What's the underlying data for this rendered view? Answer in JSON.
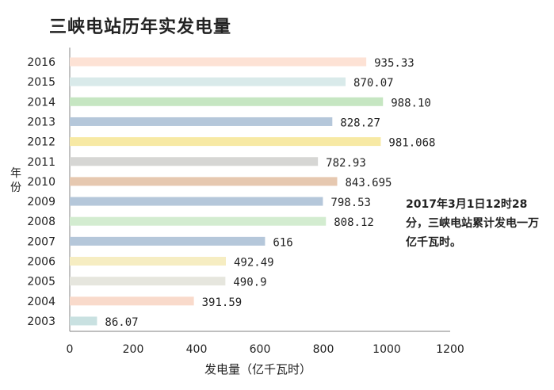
{
  "chart_data": {
    "type": "bar",
    "orientation": "horizontal",
    "title": "三峡电站历年实发电量",
    "xlabel": "发电量（亿千瓦时）",
    "ylabel": "年份",
    "xlim": [
      0,
      1200
    ],
    "xticks": [
      "0",
      "200",
      "400",
      "600",
      "800",
      "1000",
      "1200"
    ],
    "grid": false,
    "categories": [
      "2016",
      "2015",
      "2014",
      "2013",
      "2012",
      "2011",
      "2010",
      "2009",
      "2008",
      "2007",
      "2006",
      "2005",
      "2004",
      "2003"
    ],
    "values": [
      935.33,
      870.07,
      988.1,
      828.27,
      981.068,
      782.93,
      843.695,
      798.53,
      808.12,
      616,
      492.49,
      490.9,
      391.59,
      86.07
    ],
    "labels": [
      "935.33",
      "870.07",
      "988.10",
      "828.27",
      "981.068",
      "782.93",
      "843.695",
      "798.53",
      "808.12",
      "616",
      "492.49",
      "490.9",
      "391.59",
      "86.07"
    ],
    "colors": [
      "#fde2d5",
      "#d9eaea",
      "#c6e6c2",
      "#b5c7da",
      "#f7e9a4",
      "#d6d6d4",
      "#e6c8b0",
      "#b5c7da",
      "#d3ecd0",
      "#b5c7da",
      "#f6edc2",
      "#e6e6de",
      "#f9dacb",
      "#c9e1e1"
    ],
    "annotation": "2017年3月1日12时28分，三峡电站累计发电一万亿千瓦时。"
  }
}
